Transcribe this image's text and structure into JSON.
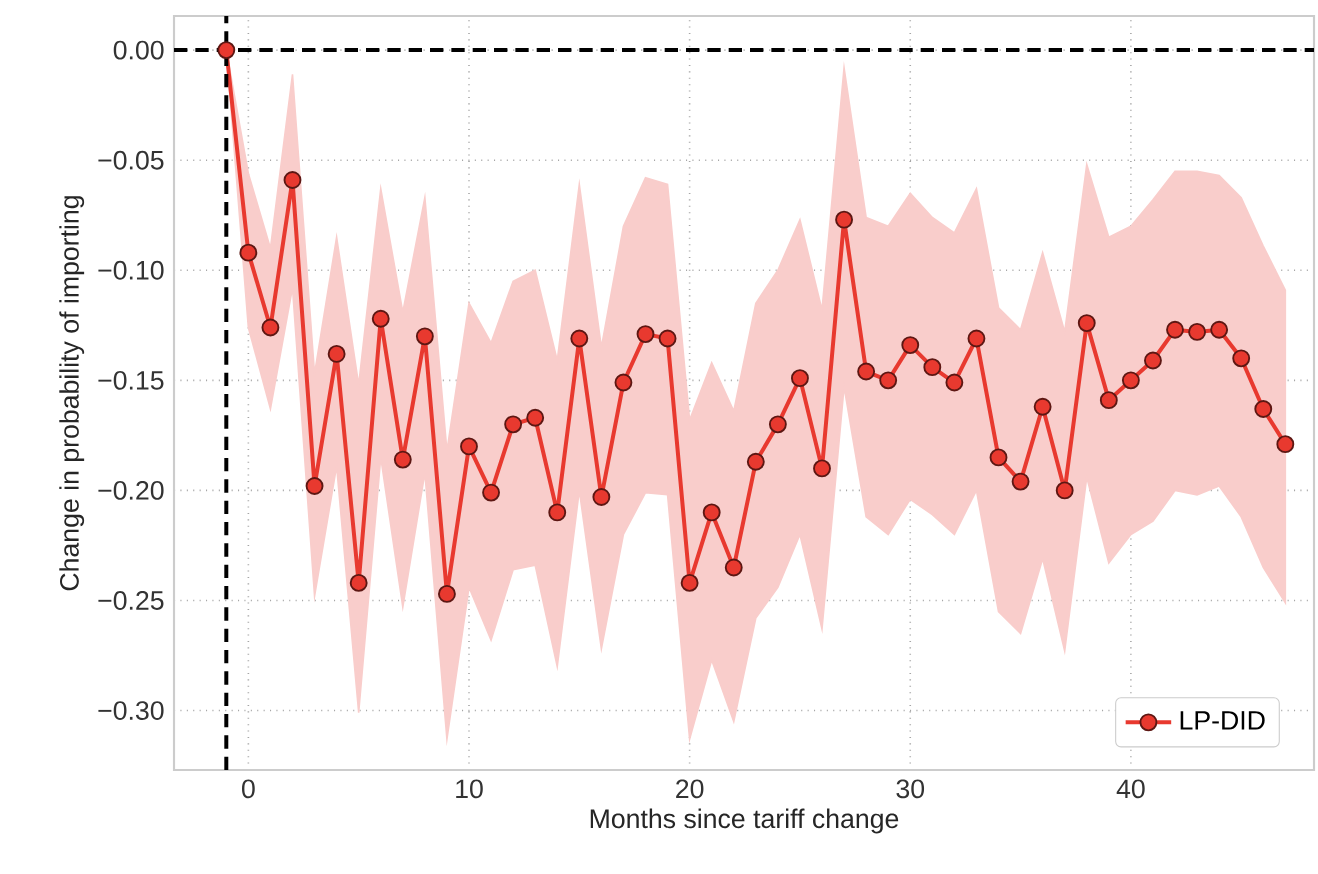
{
  "chart_data": {
    "type": "line",
    "xlabel": "Months since tariff change",
    "ylabel": "Change in probability of importing",
    "x": [
      -1,
      0,
      1,
      2,
      3,
      4,
      5,
      6,
      7,
      8,
      9,
      10,
      11,
      12,
      13,
      14,
      15,
      16,
      17,
      18,
      19,
      20,
      21,
      22,
      23,
      24,
      25,
      26,
      27,
      28,
      29,
      30,
      31,
      32,
      33,
      34,
      35,
      36,
      37,
      38,
      39,
      40,
      41,
      42,
      43,
      44,
      45,
      46,
      47
    ],
    "series": [
      {
        "name": "LP-DID",
        "color": "#e8392f",
        "values": [
          0,
          -0.092,
          -0.126,
          -0.059,
          -0.198,
          -0.138,
          -0.242,
          -0.122,
          -0.186,
          -0.13,
          -0.247,
          -0.18,
          -0.201,
          -0.17,
          -0.167,
          -0.21,
          -0.131,
          -0.203,
          -0.151,
          -0.129,
          -0.131,
          -0.242,
          -0.21,
          -0.235,
          -0.187,
          -0.17,
          -0.149,
          -0.19,
          -0.077,
          -0.146,
          -0.15,
          -0.134,
          -0.144,
          -0.151,
          -0.131,
          -0.185,
          -0.196,
          -0.162,
          -0.2,
          -0.124,
          -0.159,
          -0.15,
          -0.141,
          -0.127,
          -0.128,
          -0.127,
          -0.14,
          -0.163,
          -0.179
        ],
        "upper": [
          0,
          -0.056,
          -0.09,
          -0.011,
          -0.147,
          -0.085,
          -0.152,
          -0.063,
          -0.119,
          -0.067,
          -0.182,
          -0.115,
          -0.133,
          -0.105,
          -0.1,
          -0.141,
          -0.061,
          -0.135,
          -0.08,
          -0.058,
          -0.061,
          -0.168,
          -0.142,
          -0.164,
          -0.115,
          -0.1,
          -0.077,
          -0.118,
          -0.008,
          -0.076,
          -0.08,
          -0.065,
          -0.076,
          -0.083,
          -0.063,
          -0.117,
          -0.127,
          -0.092,
          -0.128,
          -0.052,
          -0.085,
          -0.08,
          -0.068,
          -0.055,
          -0.055,
          -0.057,
          -0.067,
          -0.089,
          -0.109
        ],
        "lower": [
          0,
          -0.126,
          -0.163,
          -0.108,
          -0.248,
          -0.189,
          -0.301,
          -0.185,
          -0.253,
          -0.192,
          -0.313,
          -0.244,
          -0.268,
          -0.236,
          -0.234,
          -0.28,
          -0.2,
          -0.272,
          -0.22,
          -0.201,
          -0.202,
          -0.313,
          -0.277,
          -0.305,
          -0.258,
          -0.244,
          -0.22,
          -0.263,
          -0.153,
          -0.212,
          -0.22,
          -0.204,
          -0.211,
          -0.22,
          -0.2,
          -0.255,
          -0.265,
          -0.231,
          -0.273,
          -0.194,
          -0.233,
          -0.22,
          -0.214,
          -0.2,
          -0.202,
          -0.198,
          -0.212,
          -0.235,
          -0.251
        ]
      }
    ],
    "xlim": [
      -3.37,
      48.3
    ],
    "ylim": [
      -0.327,
      0.0155
    ],
    "xticks": [
      0,
      10,
      20,
      30,
      40
    ],
    "yticks": [
      {
        "value": 0,
        "label": "0.00"
      },
      {
        "value": -0.05,
        "label": "−0.05"
      },
      {
        "value": -0.1,
        "label": "−0.10"
      },
      {
        "value": -0.15,
        "label": "−0.15"
      },
      {
        "value": -0.2,
        "label": "−0.20"
      },
      {
        "value": -0.25,
        "label": "−0.25"
      },
      {
        "value": -0.3,
        "label": "−0.30"
      }
    ],
    "ref_lines": [
      {
        "axis": "x",
        "value": -1,
        "color": "#000000",
        "line_style": "dashed"
      },
      {
        "axis": "y",
        "value": 0,
        "color": "#000000",
        "line_style": "dashed"
      }
    ],
    "grid": true,
    "legend": "bottom right",
    "marker": "circle",
    "line_style": "solid"
  }
}
